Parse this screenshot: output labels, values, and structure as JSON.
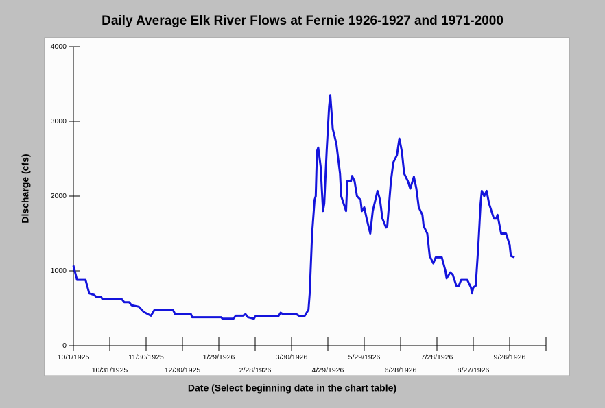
{
  "chart_data": {
    "type": "line",
    "title": "Daily Average Elk River Flows at Fernie 1926-1927 and 1971-2000",
    "xlabel": "Date (Select beginning date in the chart table)",
    "ylabel": "Discharge (cfs)",
    "xlim": [
      "10/1/1925",
      "10/26/1926"
    ],
    "xticks": [
      "10/1/1925",
      "10/31/1925",
      "11/30/1925",
      "12/30/1925",
      "1/29/1926",
      "2/28/1926",
      "3/30/1926",
      "4/29/1926",
      "5/29/1926",
      "6/28/1926",
      "7/28/1926",
      "8/27/1926",
      "9/26/1926"
    ],
    "ylim": [
      0,
      4000
    ],
    "yticks": [
      0,
      1000,
      2000,
      3000,
      4000
    ],
    "x": [
      "10/1/1925",
      "10/4/1925",
      "10/11/1925",
      "10/14/1925",
      "10/18/1925",
      "10/20/1925",
      "10/24/1925",
      "10/25/1925",
      "11/10/1925",
      "11/12/1925",
      "11/16/1925",
      "11/18/1925",
      "11/24/1925",
      "11/28/1925",
      "12/4/1925",
      "12/7/1925",
      "12/22/1925",
      "12/24/1925",
      "1/6/1926",
      "1/7/1926",
      "1/31/1926",
      "2/1/1926",
      "2/10/1926",
      "2/12/1926",
      "2/18/1926",
      "2/20/1926",
      "2/22/1926",
      "2/27/1926",
      "2/28/1926",
      "3/19/1926",
      "3/21/1926",
      "3/23/1926",
      "4/3/1926",
      "4/6/1926",
      "4/10/1926",
      "4/13/1926",
      "4/14/1926",
      "4/16/1926",
      "4/18/1926",
      "4/19/1926",
      "4/20/1926",
      "4/21/1926",
      "4/23/1926",
      "4/25/1926",
      "4/26/1926",
      "4/28/1926",
      "4/30/1926",
      "5/1/1926",
      "5/3/1926",
      "5/6/1926",
      "5/9/1926",
      "5/10/1926",
      "5/14/1926",
      "5/15/1926",
      "5/18/1926",
      "5/19/1926",
      "5/21/1926",
      "5/23/1926",
      "5/26/1926",
      "5/27/1926",
      "5/29/1926",
      "5/31/1926",
      "6/3/1926",
      "6/5/1926",
      "6/9/1926",
      "6/11/1926",
      "6/13/1926",
      "6/16/1926",
      "6/17/1926",
      "6/20/1926",
      "6/22/1926",
      "6/25/1926",
      "6/27/1926",
      "6/29/1926",
      "7/1/1926",
      "7/4/1926",
      "7/6/1926",
      "7/9/1926",
      "7/11/1926",
      "7/13/1926",
      "7/16/1926",
      "7/17/1926",
      "7/20/1926",
      "7/22/1926",
      "7/25/1926",
      "7/27/1926",
      "8/1/1926",
      "8/4/1926",
      "8/5/1926",
      "8/8/1926",
      "8/10/1926",
      "8/13/1926",
      "8/15/1926",
      "8/17/1926",
      "8/22/1926",
      "8/25/1926",
      "8/26/1926",
      "8/27/1926",
      "8/29/1926",
      "8/31/1926",
      "9/2/1926",
      "9/3/1926",
      "9/5/1926",
      "9/7/1926",
      "9/9/1926",
      "9/11/1926",
      "9/13/1926",
      "9/15/1926",
      "9/16/1926",
      "9/19/1926",
      "9/23/1926",
      "9/26/1926",
      "9/27/1926",
      "9/30/1926"
    ],
    "series": [
      {
        "color": "#1414dc",
        "values": [
          1070,
          880,
          880,
          700,
          680,
          650,
          650,
          620,
          620,
          580,
          580,
          540,
          520,
          450,
          400,
          480,
          480,
          420,
          420,
          380,
          380,
          360,
          360,
          400,
          400,
          420,
          380,
          360,
          390,
          390,
          440,
          420,
          420,
          390,
          400,
          480,
          700,
          1500,
          1950,
          2000,
          2600,
          2650,
          2400,
          1800,
          1900,
          2600,
          3200,
          3350,
          2900,
          2700,
          2300,
          2000,
          1800,
          2200,
          2200,
          2270,
          2200,
          2000,
          1950,
          1800,
          1850,
          1700,
          1500,
          1800,
          2070,
          1950,
          1700,
          1580,
          1600,
          2200,
          2450,
          2550,
          2770,
          2600,
          2300,
          2200,
          2100,
          2260,
          2100,
          1850,
          1750,
          1600,
          1500,
          1200,
          1100,
          1180,
          1180,
          1000,
          900,
          980,
          950,
          800,
          800,
          880,
          880,
          780,
          700,
          780,
          800,
          1300,
          1900,
          2070,
          2000,
          2070,
          1900,
          1800,
          1700,
          1700,
          1750,
          1500,
          1500,
          1350,
          1200,
          1180
        ]
      }
    ]
  }
}
